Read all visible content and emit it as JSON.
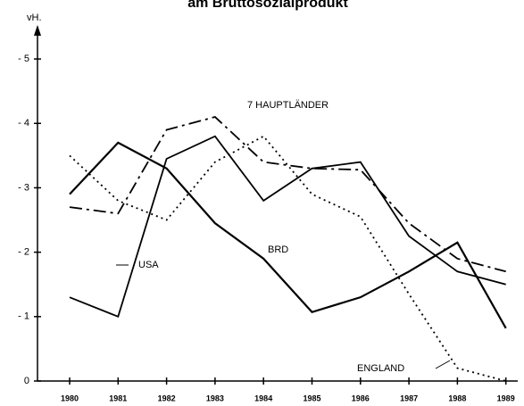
{
  "chart_data": {
    "type": "line",
    "title": "am Bruttosozialprodukt",
    "ylabel": "vH.",
    "categories": [
      "1980",
      "1981",
      "1982",
      "1983",
      "1984",
      "1985",
      "1986",
      "1987",
      "1988",
      "1989"
    ],
    "ylim": [
      0,
      -5.5
    ],
    "yticks": [
      0,
      {
        "value": -1,
        "label": "- 1"
      },
      {
        "value": -2,
        "label": "- 2"
      },
      {
        "value": -3,
        "label": "- 3"
      },
      {
        "value": -4,
        "label": "- 4"
      },
      {
        "value": -5,
        "label": "- 5"
      }
    ],
    "series": [
      {
        "name": "USA",
        "color": "#000000",
        "style": "solid",
        "values": [
          -1.3,
          -1.0,
          -3.45,
          -3.8,
          -2.8,
          -3.3,
          -3.4,
          -2.25,
          -1.7,
          -1.5
        ]
      },
      {
        "name": "BRD",
        "color": "#000000",
        "style": "wavy",
        "values": [
          -2.9,
          -3.7,
          -3.3,
          -2.45,
          -1.9,
          -1.07,
          -1.3,
          -1.7,
          -2.15,
          -0.82
        ]
      },
      {
        "name": "7 HAUPTLÄNDER",
        "color": "#000000",
        "style": "dashdot",
        "values": [
          -2.7,
          -2.6,
          -3.9,
          -4.1,
          -3.4,
          -3.3,
          -3.28,
          -2.45,
          -1.9,
          -1.7
        ]
      },
      {
        "name": "ENGLAND",
        "color": "#000000",
        "style": "dotted",
        "values": [
          -3.5,
          -2.8,
          -2.5,
          -3.4,
          -3.8,
          -2.9,
          -2.55,
          -1.35,
          -0.2,
          0
        ]
      }
    ]
  }
}
